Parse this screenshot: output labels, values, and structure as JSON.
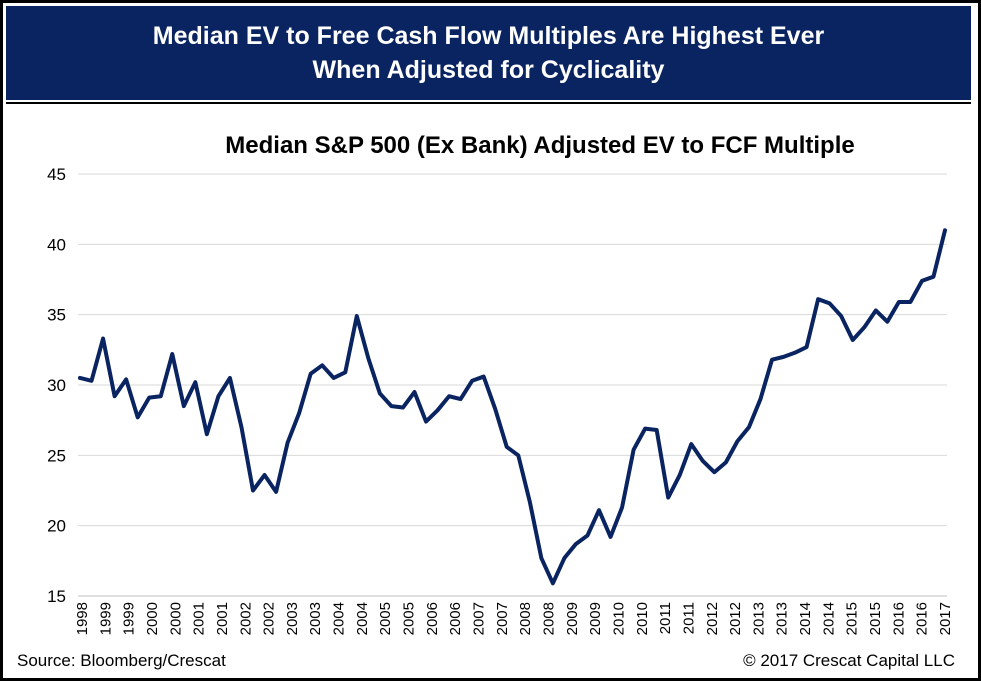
{
  "header": {
    "title_line1": "Median EV to Free Cash Flow Multiples Are Highest Ever",
    "title_line2": "When Adjusted for Cyclicality"
  },
  "footer": {
    "source": "Source: Bloomberg/Crescat",
    "copyright": "© 2017 Crescat Capital LLC"
  },
  "colors": {
    "banner": "#0a2461",
    "line": "#0a2461",
    "grid": "#d9d9d9"
  },
  "chart_data": {
    "type": "line",
    "title": "Median S&P 500 (Ex Bank) Adjusted EV to FCF Multiple",
    "xlabel": "",
    "ylabel": "",
    "ylim": [
      15,
      45
    ],
    "yticks": [
      15,
      20,
      25,
      30,
      35,
      40,
      45
    ],
    "grid": true,
    "legend": "none",
    "x_tick_labels": [
      "1998",
      "1999",
      "1999",
      "2000",
      "2000",
      "2001",
      "2001",
      "2002",
      "2002",
      "2003",
      "2003",
      "2004",
      "2004",
      "2005",
      "2005",
      "2006",
      "2006",
      "2007",
      "2007",
      "2008",
      "2008",
      "2009",
      "2009",
      "2010",
      "2010",
      "2011",
      "2011",
      "2012",
      "2012",
      "2013",
      "2013",
      "2014",
      "2014",
      "2015",
      "2015",
      "2016",
      "2016",
      "2017"
    ],
    "series": [
      {
        "values": [
          30.5,
          30.3,
          33.3,
          29.2,
          30.4,
          27.7,
          29.1,
          29.2,
          32.2,
          28.5,
          30.2,
          26.5,
          29.2,
          30.5,
          27.0,
          22.5,
          23.6,
          22.4,
          25.9,
          28.0,
          30.8,
          31.4,
          30.5,
          30.9,
          34.9,
          31.9,
          29.4,
          28.5,
          28.4,
          29.5,
          27.4,
          28.2,
          29.2,
          29.0,
          30.3,
          30.6,
          28.3,
          25.6,
          25.0,
          21.7,
          17.7,
          15.9,
          17.7,
          18.7,
          19.3,
          21.1,
          19.2,
          21.3,
          25.4,
          26.9,
          26.8,
          22.0,
          23.6,
          25.8,
          24.6,
          23.8,
          24.5,
          26.0,
          27.0,
          29.0,
          31.8,
          32.0,
          32.3,
          32.7,
          36.1,
          35.8,
          34.9,
          33.2,
          34.1,
          35.3,
          34.5,
          35.9,
          35.9,
          37.4,
          37.7,
          41.0
        ]
      }
    ]
  }
}
